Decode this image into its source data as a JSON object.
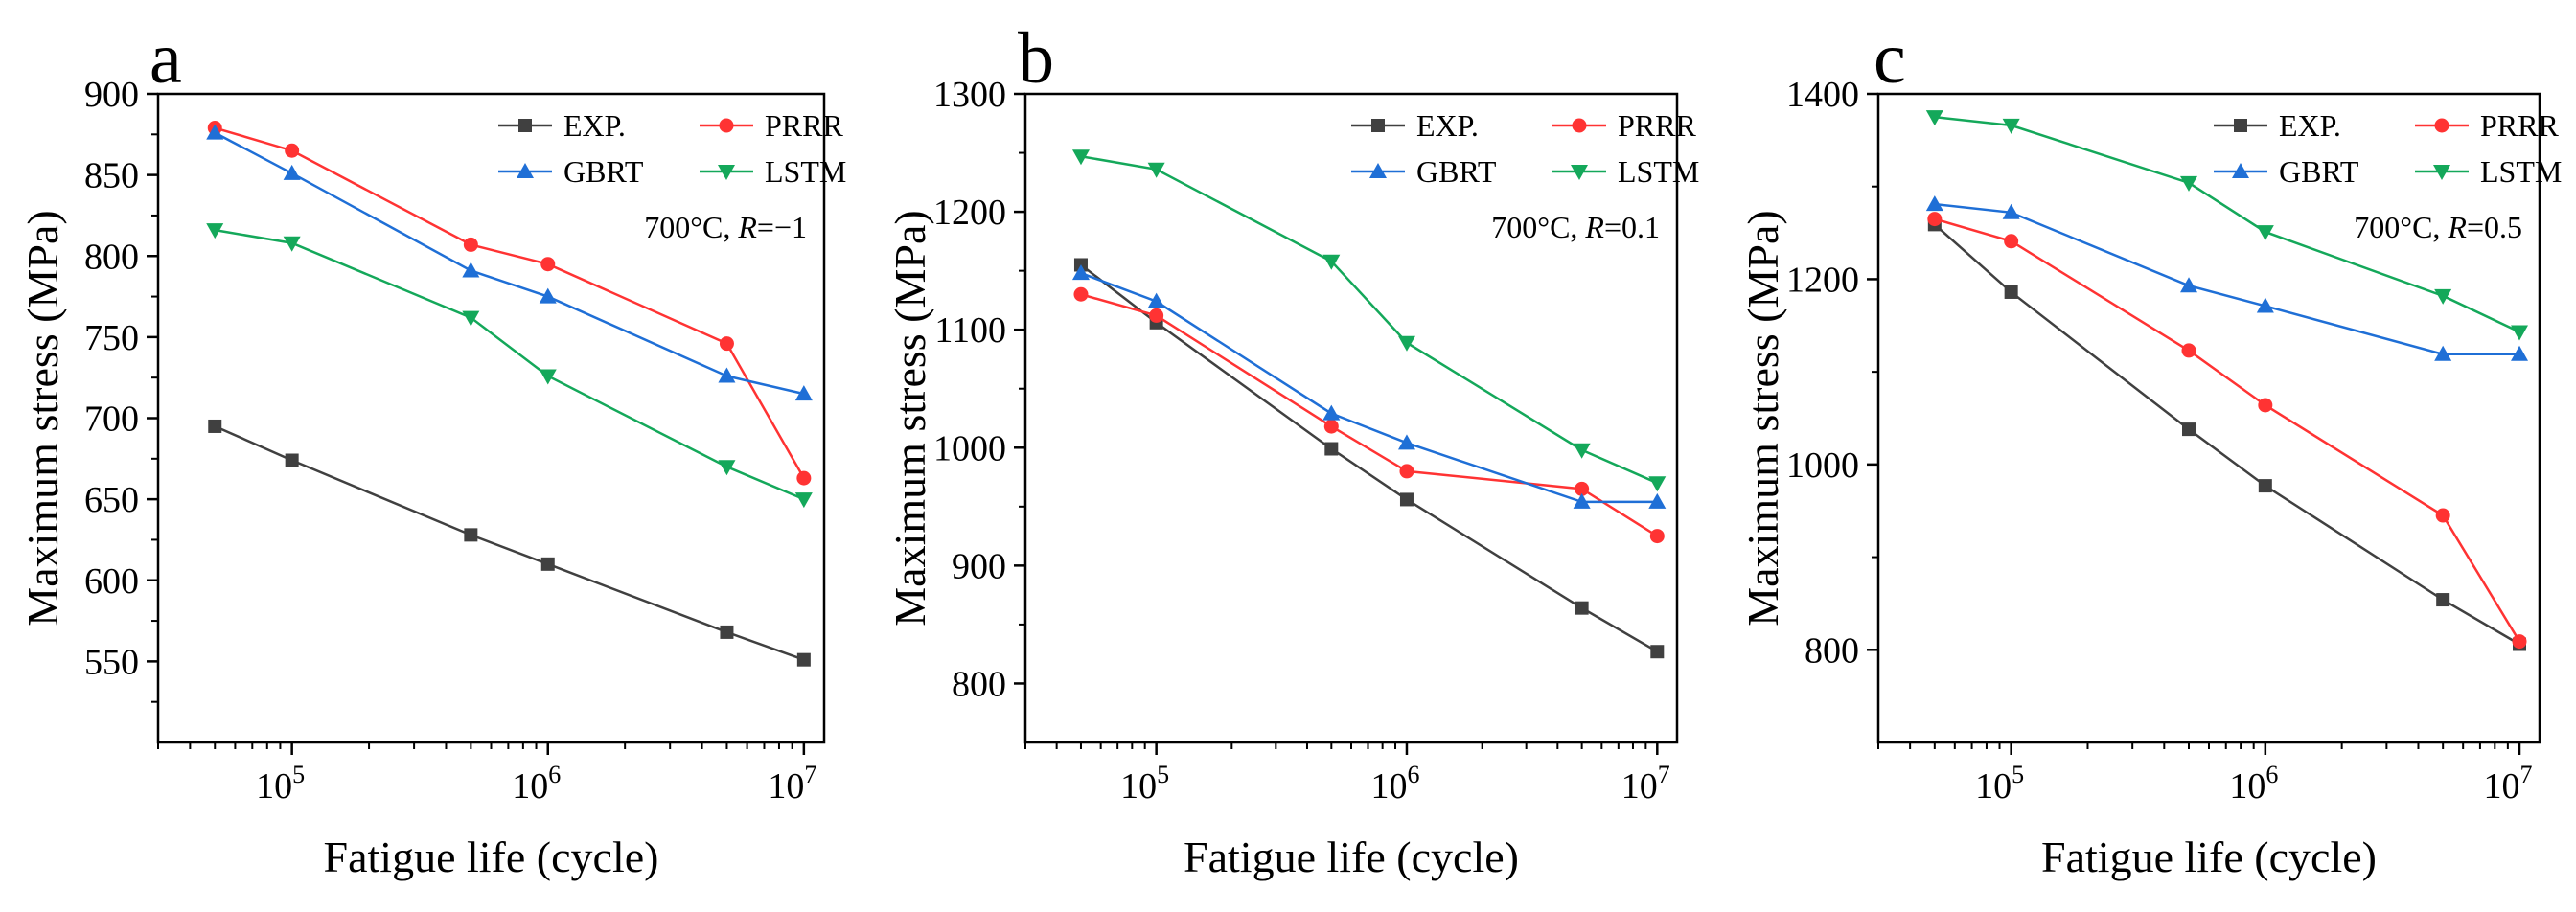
{
  "figure": {
    "colors": {
      "EXP.": "#404040",
      "PRRR": "#ff3333",
      "GBRT": "#1f6fd6",
      "LSTM": "#14a85a"
    },
    "markers": {
      "EXP.": "square",
      "PRRR": "circle",
      "GBRT": "triangle-up",
      "LSTM": "triangle-down"
    }
  },
  "chart_data": [
    {
      "type": "line",
      "panel": "a",
      "condition": {
        "prefix": "700°C, ",
        "var": "R",
        "suffix": "=−1"
      },
      "xlabel": "Fatigue life (cycle)",
      "ylabel": "Maximum stress (MPa)",
      "xscale": "log",
      "xlim": [
        30000,
        12000000
      ],
      "ylim": [
        500,
        900
      ],
      "yticks": [
        550,
        600,
        650,
        700,
        750,
        800,
        850,
        900
      ],
      "xticks": [
        {
          "value": 100000,
          "base": "10",
          "exp": "5"
        },
        {
          "value": 1000000,
          "base": "10",
          "exp": "6"
        },
        {
          "value": 10000000,
          "base": "10",
          "exp": "7"
        }
      ],
      "x": [
        50000,
        100000,
        500000,
        1000000,
        5000000,
        10000000
      ],
      "series": [
        {
          "name": "EXP.",
          "values": [
            695,
            674,
            628,
            610,
            568,
            551
          ]
        },
        {
          "name": "PRRR",
          "values": [
            879,
            865,
            807,
            795,
            746,
            663
          ]
        },
        {
          "name": "GBRT",
          "values": [
            876,
            851,
            791,
            775,
            726,
            715
          ]
        },
        {
          "name": "LSTM",
          "values": [
            816,
            808,
            762,
            726,
            670,
            650
          ]
        }
      ]
    },
    {
      "type": "line",
      "panel": "b",
      "condition": {
        "prefix": "700°C, ",
        "var": "R",
        "suffix": "=0.1"
      },
      "xlabel": "Fatigue life (cycle)",
      "ylabel": "Maximum stress (MPa)",
      "xscale": "log",
      "xlim": [
        30000,
        12000000
      ],
      "ylim": [
        750,
        1300
      ],
      "yticks": [
        800,
        900,
        1000,
        1100,
        1200,
        1300
      ],
      "xticks": [
        {
          "value": 100000,
          "base": "10",
          "exp": "5"
        },
        {
          "value": 1000000,
          "base": "10",
          "exp": "6"
        },
        {
          "value": 10000000,
          "base": "10",
          "exp": "7"
        }
      ],
      "x": [
        50000,
        100000,
        500000,
        1000000,
        5000000,
        10000000
      ],
      "series": [
        {
          "name": "EXP.",
          "values": [
            1155,
            1106,
            999,
            956,
            864,
            827
          ]
        },
        {
          "name": "PRRR",
          "values": [
            1130,
            1112,
            1018,
            980,
            965,
            925
          ]
        },
        {
          "name": "GBRT",
          "values": [
            1148,
            1124,
            1029,
            1004,
            954,
            954
          ]
        },
        {
          "name": "LSTM",
          "values": [
            1247,
            1236,
            1158,
            1089,
            998,
            970
          ]
        }
      ]
    },
    {
      "type": "line",
      "panel": "c",
      "condition": {
        "prefix": "700°C, ",
        "var": "R",
        "suffix": "=0.5"
      },
      "xlabel": "Fatigue life (cycle)",
      "ylabel": "Maximum stress (MPa)",
      "xscale": "log",
      "xlim": [
        30000,
        12000000
      ],
      "ylim": [
        700,
        1400
      ],
      "yticks": [
        800,
        1000,
        1200,
        1400
      ],
      "xticks": [
        {
          "value": 100000,
          "base": "10",
          "exp": "5"
        },
        {
          "value": 1000000,
          "base": "10",
          "exp": "6"
        },
        {
          "value": 10000000,
          "base": "10",
          "exp": "7"
        }
      ],
      "x": [
        50000,
        100000,
        500000,
        1000000,
        5000000,
        10000000
      ],
      "series": [
        {
          "name": "EXP.",
          "values": [
            1259,
            1186,
            1038,
            977,
            854,
            806
          ]
        },
        {
          "name": "PRRR",
          "values": [
            1265,
            1241,
            1123,
            1064,
            945,
            809
          ]
        },
        {
          "name": "GBRT",
          "values": [
            1281,
            1272,
            1193,
            1171,
            1119,
            1119
          ]
        },
        {
          "name": "LSTM",
          "values": [
            1375,
            1366,
            1304,
            1251,
            1182,
            1143
          ]
        }
      ]
    }
  ]
}
